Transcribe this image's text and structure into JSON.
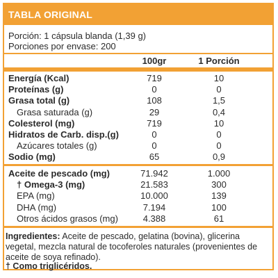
{
  "title": "TABLA ORIGINAL",
  "serving": "Porción: 1 cápsula blanda (1,39 g)",
  "servings_per_container": "Porciones por envase: 200",
  "columns": {
    "per100": "100gr",
    "perPortion": "1 Porción"
  },
  "rows": [
    {
      "label": "Energía (Kcal)",
      "per100": "719",
      "perPortion": "10",
      "bold": true
    },
    {
      "label": "Proteínas (g)",
      "per100": "0",
      "perPortion": "0",
      "bold": true
    },
    {
      "label": "Grasa total (g)",
      "per100": "108",
      "perPortion": "1,5",
      "bold": true
    },
    {
      "label": "Grasa saturada (g)",
      "per100": "29",
      "perPortion": "0,4",
      "bold": false,
      "indent": true
    },
    {
      "label": "Colesterol (mg)",
      "per100": "719",
      "perPortion": "10",
      "bold": true
    },
    {
      "label": "Hidratos de Carb. disp.(g)",
      "per100": "0",
      "perPortion": "0",
      "bold": true
    },
    {
      "label": "Azúcares totales (g)",
      "per100": "0",
      "perPortion": "0",
      "bold": false,
      "indent": true
    },
    {
      "label": "Sodio (mg)",
      "per100": "65",
      "perPortion": "0,9",
      "bold": true
    }
  ],
  "rows2": [
    {
      "label": "Aceite de pescado (mg)",
      "per100": "71.942",
      "perPortion": "1.000",
      "bold": true
    },
    {
      "label": "† Omega-3 (mg)",
      "per100": "21.583",
      "perPortion": "300",
      "bold": true,
      "indent": true
    },
    {
      "label": "EPA (mg)",
      "per100": "10.000",
      "perPortion": "139",
      "bold": false,
      "indent": true
    },
    {
      "label": "DHA (mg)",
      "per100": "7.194",
      "perPortion": "100",
      "bold": false,
      "indent": true
    },
    {
      "label": "Otros ácidos grasos (mg)",
      "per100": "4.388",
      "perPortion": "61",
      "bold": false,
      "indent": true
    }
  ],
  "ingredients_label": "Ingredientes:",
  "ingredients_text": "Aceite de pescado, gelatina (bovina), glicerina vegetal, mezcla natural de tocoferoles naturales (provenientes de aceite de soya refinado).",
  "footnote": "† Como triglicéridos.",
  "colors": {
    "accent": "#f2a134",
    "text": "#2b2b2b"
  }
}
